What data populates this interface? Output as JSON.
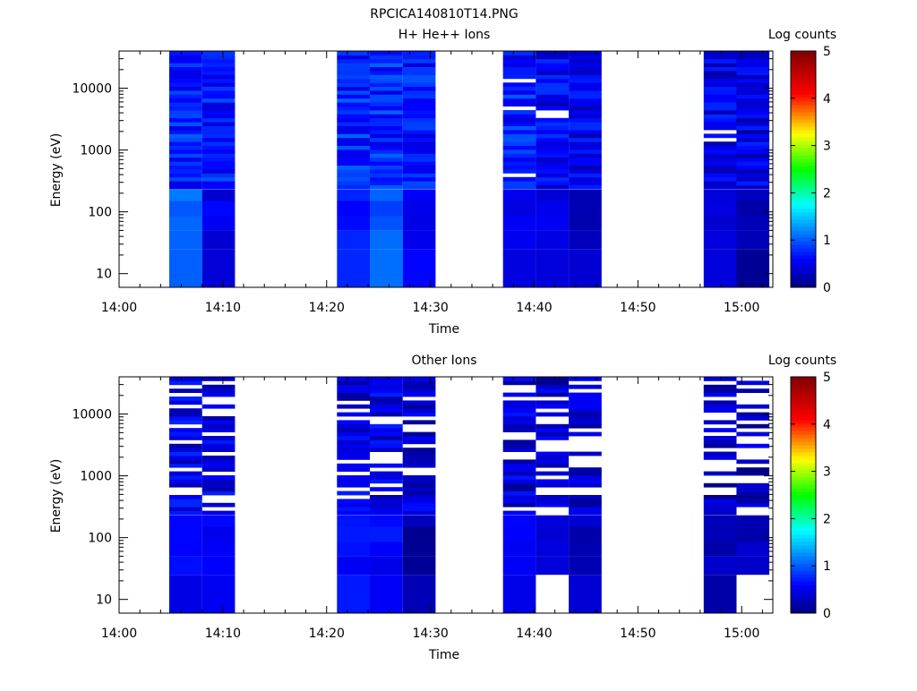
{
  "figure_title": "RPCICA140810T14.PNG",
  "chart_data": [
    {
      "type": "heatmap",
      "title": "H+ He++ Ions",
      "xlabel": "Time",
      "ylabel": "Energy (eV)",
      "x_ticks": [
        "14:00",
        "14:10",
        "14:20",
        "14:30",
        "14:40",
        "14:50",
        "15:00"
      ],
      "x_range_minutes": [
        0,
        63
      ],
      "y_scale": "log",
      "y_ticks": [
        10,
        100,
        1000,
        10000
      ],
      "y_range": [
        6,
        40000
      ],
      "colorbar": {
        "label": "Log counts",
        "range": [
          0,
          5
        ],
        "ticks": [
          "0",
          "1",
          "2",
          "3",
          "4",
          "5"
        ],
        "colormap": "rainbow"
      },
      "grid": false,
      "time_blocks": [
        {
          "start": "14:04:50",
          "end": "14:08:00",
          "low_energy_level": 1.1,
          "mean_level": 0.75,
          "gap_fraction": 0.0
        },
        {
          "start": "14:08:00",
          "end": "14:11:10",
          "low_energy_level": 0.5,
          "mean_level": 0.7,
          "gap_fraction": 0.0
        },
        {
          "start": "14:21:00",
          "end": "14:24:10",
          "low_energy_level": 0.7,
          "mean_level": 0.75,
          "gap_fraction": 0.0
        },
        {
          "start": "14:24:10",
          "end": "14:27:20",
          "low_energy_level": 1.0,
          "mean_level": 0.75,
          "gap_fraction": 0.0
        },
        {
          "start": "14:27:20",
          "end": "14:30:30",
          "low_energy_level": 0.6,
          "mean_level": 0.7,
          "gap_fraction": 0.0
        },
        {
          "start": "14:37:00",
          "end": "14:40:10",
          "low_energy_level": 0.5,
          "mean_level": 0.7,
          "gap_fraction": 0.03
        },
        {
          "start": "14:40:10",
          "end": "14:43:20",
          "low_energy_level": 0.45,
          "mean_level": 0.55,
          "gap_fraction": 0.06
        },
        {
          "start": "14:43:20",
          "end": "14:46:30",
          "low_energy_level": 0.3,
          "mean_level": 0.5,
          "gap_fraction": 0.04
        },
        {
          "start": "14:56:20",
          "end": "14:59:30",
          "low_energy_level": 0.45,
          "mean_level": 0.5,
          "gap_fraction": 0.12
        },
        {
          "start": "14:59:30",
          "end": "15:02:40",
          "low_energy_level": 0.2,
          "mean_level": 0.45,
          "gap_fraction": 0.1
        }
      ]
    },
    {
      "type": "heatmap",
      "title": "Other Ions",
      "xlabel": "Time",
      "ylabel": "Energy (eV)",
      "x_ticks": [
        "14:00",
        "14:10",
        "14:20",
        "14:30",
        "14:40",
        "14:50",
        "15:00"
      ],
      "x_range_minutes": [
        0,
        63
      ],
      "y_scale": "log",
      "y_ticks": [
        10,
        100,
        1000,
        10000
      ],
      "y_range": [
        6,
        40000
      ],
      "colorbar": {
        "label": "Log counts",
        "range": [
          0,
          5
        ],
        "ticks": [
          "0",
          "1",
          "2",
          "3",
          "4",
          "5"
        ],
        "colormap": "rainbow"
      },
      "grid": false,
      "time_blocks": [
        {
          "start": "14:04:50",
          "end": "14:08:00",
          "low_energy_level": 0.55,
          "mean_level": 0.5,
          "gap_fraction": 0.2
        },
        {
          "start": "14:08:00",
          "end": "14:11:10",
          "low_energy_level": 0.55,
          "mean_level": 0.45,
          "gap_fraction": 0.25
        },
        {
          "start": "14:21:00",
          "end": "14:24:10",
          "low_energy_level": 0.6,
          "mean_level": 0.45,
          "gap_fraction": 0.2
        },
        {
          "start": "14:24:10",
          "end": "14:27:20",
          "low_energy_level": 0.6,
          "mean_level": 0.45,
          "gap_fraction": 0.25
        },
        {
          "start": "14:27:20",
          "end": "14:30:30",
          "low_energy_level": 0.2,
          "mean_level": 0.4,
          "gap_fraction": 0.25
        },
        {
          "start": "14:37:00",
          "end": "14:40:10",
          "low_energy_level": 0.6,
          "mean_level": 0.4,
          "gap_fraction": 0.2
        },
        {
          "start": "14:40:10",
          "end": "14:43:20",
          "low_energy_level": null,
          "mean_level": 0.35,
          "gap_fraction": 0.35
        },
        {
          "start": "14:43:20",
          "end": "14:46:30",
          "low_energy_level": 0.3,
          "mean_level": 0.35,
          "gap_fraction": 0.3
        },
        {
          "start": "14:56:20",
          "end": "14:59:30",
          "low_energy_level": 0.3,
          "mean_level": 0.3,
          "gap_fraction": 0.45
        },
        {
          "start": "14:59:30",
          "end": "15:02:40",
          "low_energy_level": null,
          "mean_level": 0.3,
          "gap_fraction": 0.35
        }
      ]
    }
  ]
}
